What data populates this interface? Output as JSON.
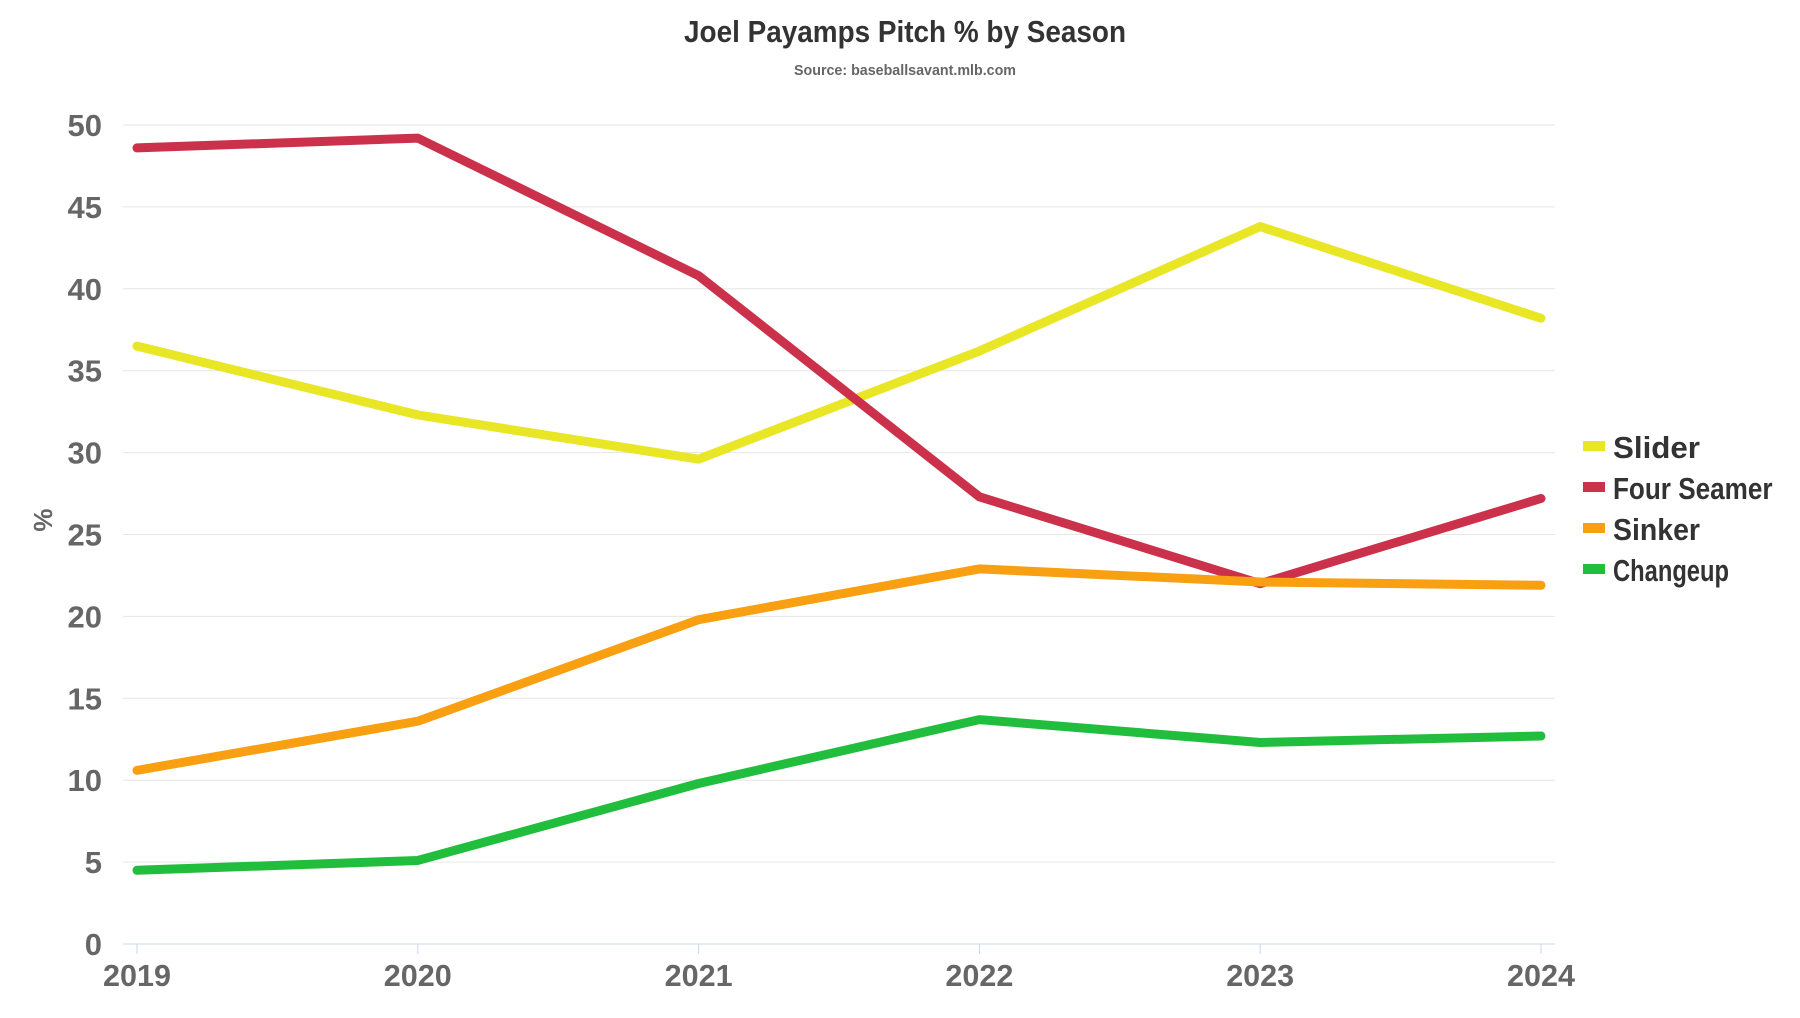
{
  "chart_data": {
    "type": "line",
    "title": "Joel Payamps Pitch % by Season",
    "subtitle": "Source: baseballsavant.mlb.com",
    "xlabel": "",
    "ylabel": "%",
    "x": [
      "2019",
      "2020",
      "2021",
      "2022",
      "2023",
      "2024"
    ],
    "ylim": [
      0,
      50
    ],
    "yticks": [
      "0",
      "5",
      "10",
      "15",
      "20",
      "25",
      "30",
      "35",
      "40",
      "45",
      "50"
    ],
    "grid": true,
    "legend_position": "right",
    "series": [
      {
        "name": "Slider",
        "color": "#e8e625",
        "values": [
          36.5,
          32.3,
          29.6,
          36.2,
          43.8,
          38.2
        ]
      },
      {
        "name": "Four Seamer",
        "color": "#cc314c",
        "values": [
          48.6,
          49.2,
          40.8,
          27.3,
          22.0,
          27.2
        ]
      },
      {
        "name": "Sinker",
        "color": "#f89f12",
        "values": [
          10.6,
          13.6,
          19.8,
          22.9,
          22.1,
          21.9
        ]
      },
      {
        "name": "Changeup",
        "color": "#21bd3c",
        "values": [
          4.5,
          5.1,
          9.8,
          13.7,
          12.3,
          12.7
        ]
      }
    ]
  }
}
